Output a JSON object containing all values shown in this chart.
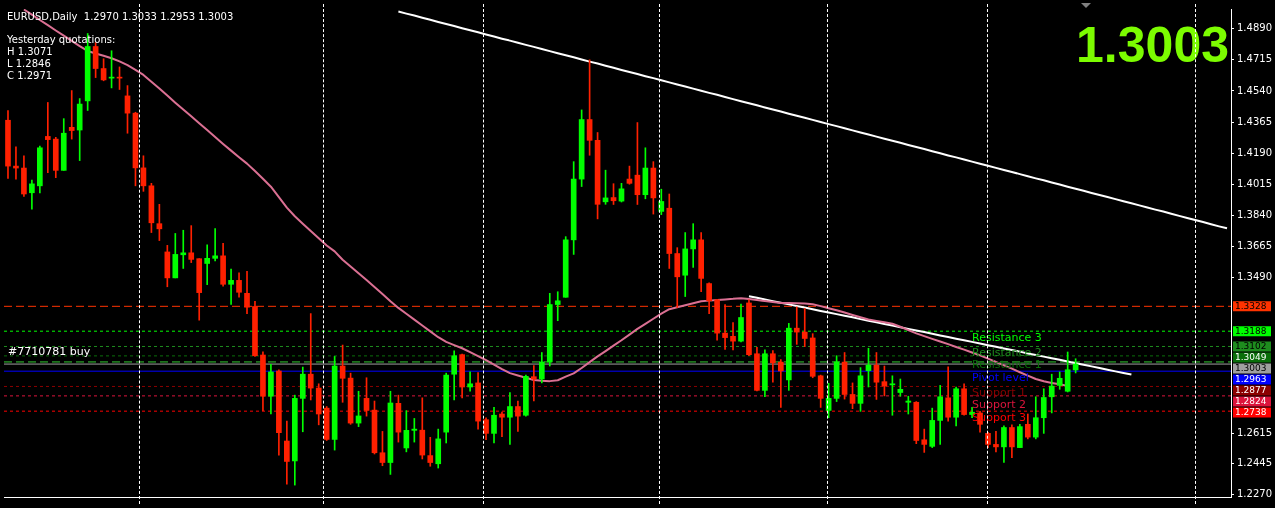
{
  "chart_data": {
    "type": "candlestick",
    "title": "EURUSD,Daily  1.2970 1.3033 1.2953 1.3003",
    "annotations": [
      "Yesterday quotations:",
      "H 1.3071",
      "L 1.2846",
      "C 1.2971",
      "1.3003",
      {
        "text": "#7710781 buy",
        "y": 1.3015
      },
      {
        "text": "Resistance 3",
        "y": 1.3188
      },
      {
        "text": "Resistance 2",
        "y": 1.3102
      },
      {
        "text": "Resistance 1",
        "y": 1.3049
      },
      {
        "text": "Pivot level",
        "y": 1.2963
      },
      {
        "text": "Support 1",
        "y": 1.2877
      },
      {
        "text": "Support 2",
        "y": 1.2824
      },
      {
        "text": "Support 3",
        "y": 1.2738
      }
    ],
    "categories": [
      null,
      null,
      null,
      null,
      null,
      null,
      null,
      null,
      null,
      null,
      null,
      null,
      null,
      null,
      null,
      null,
      null,
      null,
      null,
      null,
      null,
      null,
      null,
      null,
      null,
      null,
      null,
      null,
      null,
      null,
      null,
      null,
      null,
      null,
      null,
      null,
      null,
      null,
      null,
      null,
      null,
      null,
      null,
      null,
      null,
      null,
      null,
      null,
      null,
      null,
      null,
      null,
      null,
      null,
      null,
      null,
      null,
      null,
      null,
      null,
      null,
      null,
      null,
      null,
      null,
      null,
      null,
      null,
      null,
      null,
      null,
      null,
      null,
      null,
      null,
      null,
      null,
      null,
      null,
      null,
      null,
      null,
      null,
      null,
      null,
      null,
      null,
      null,
      null,
      null,
      null,
      null,
      null,
      null,
      null,
      null,
      null,
      null,
      null,
      null,
      null,
      null,
      null,
      null,
      null,
      null,
      null,
      null,
      null,
      null,
      null,
      null,
      null,
      null,
      null,
      null,
      null,
      null,
      null,
      null,
      null,
      null,
      null,
      null,
      null,
      null,
      null,
      null,
      null,
      null,
      null,
      null,
      null,
      null,
      null,
      null,
      null,
      null,
      null,
      null,
      null,
      null,
      null,
      null,
      null,
      null,
      null,
      null,
      null,
      null,
      null,
      null,
      null,
      null
    ],
    "ohlc": [
      [
        1.4375,
        1.443,
        1.4047,
        1.4117
      ],
      [
        1.4117,
        1.4226,
        1.4044,
        1.4106
      ],
      [
        1.4106,
        1.4175,
        1.3947,
        1.396
      ],
      [
        1.3967,
        1.4038,
        1.3875,
        1.4017
      ],
      [
        1.4006,
        1.4229,
        1.3966,
        1.422
      ],
      [
        1.4284,
        1.4475,
        1.408,
        1.4266
      ],
      [
        1.4269,
        1.4279,
        1.4052,
        1.4093
      ],
      [
        1.4093,
        1.4384,
        1.4093,
        1.4302
      ],
      [
        1.4335,
        1.4542,
        1.4269,
        1.4317
      ],
      [
        1.432,
        1.4497,
        1.4148,
        1.4466
      ],
      [
        1.4484,
        1.4863,
        1.443,
        1.479
      ],
      [
        1.479,
        1.4812,
        1.4615,
        1.4666
      ],
      [
        1.4666,
        1.4721,
        1.4597,
        1.4602
      ],
      [
        1.4612,
        1.4766,
        1.4557,
        1.4612
      ],
      [
        1.4612,
        1.4675,
        1.4548,
        1.4612
      ],
      [
        1.4512,
        1.457,
        1.4302,
        1.4415
      ],
      [
        1.4415,
        1.442,
        1.4006,
        1.4107
      ],
      [
        1.4107,
        1.4175,
        1.3975,
        1.4006
      ],
      [
        1.4006,
        1.402,
        1.3743,
        1.3798
      ],
      [
        1.3793,
        1.3902,
        1.3698,
        1.3764
      ],
      [
        1.3634,
        1.3671,
        1.3438,
        1.3488
      ],
      [
        1.3488,
        1.3738,
        1.3488,
        1.362
      ],
      [
        1.3618,
        1.3756,
        1.3541,
        1.3629
      ],
      [
        1.3629,
        1.3782,
        1.3574,
        1.3592
      ],
      [
        1.3596,
        1.3596,
        1.325,
        1.3405
      ],
      [
        1.3569,
        1.3674,
        1.345,
        1.3598
      ],
      [
        1.3598,
        1.3765,
        1.3583,
        1.3612
      ],
      [
        1.3612,
        1.3683,
        1.3441,
        1.3452
      ],
      [
        1.3452,
        1.3538,
        1.3338,
        1.3474
      ],
      [
        1.3474,
        1.3516,
        1.338,
        1.3407
      ],
      [
        1.3401,
        1.3525,
        1.3287,
        1.3323
      ],
      [
        1.3327,
        1.3356,
        1.3046,
        1.305
      ],
      [
        1.3054,
        1.3072,
        1.2741,
        1.2822
      ],
      [
        1.2822,
        1.3001,
        1.2722,
        1.2959
      ],
      [
        1.2964,
        1.297,
        1.2491,
        1.2617
      ],
      [
        1.257,
        1.2682,
        1.2327,
        1.2455
      ],
      [
        1.2458,
        1.2828,
        1.2322,
        1.281
      ],
      [
        1.281,
        1.2986,
        1.2622,
        1.2946
      ],
      [
        1.2946,
        1.3287,
        1.2801,
        1.2868
      ],
      [
        1.2868,
        1.2892,
        1.2661,
        1.2722
      ],
      [
        1.2755,
        1.2764,
        1.2573,
        1.2579
      ],
      [
        1.2579,
        1.3046,
        1.2519,
        1.2992
      ],
      [
        1.2992,
        1.311,
        1.2788,
        1.2923
      ],
      [
        1.2924,
        1.2952,
        1.2664,
        1.2671
      ],
      [
        1.2671,
        1.285,
        1.2651,
        1.2711
      ],
      [
        1.281,
        1.2926,
        1.271,
        1.2742
      ],
      [
        1.2744,
        1.2795,
        1.2497,
        1.2504
      ],
      [
        1.2504,
        1.2624,
        1.2431,
        1.2449
      ],
      [
        1.2449,
        1.285,
        1.2382,
        1.2784
      ],
      [
        1.2782,
        1.2828,
        1.2564,
        1.262
      ],
      [
        1.2531,
        1.2741,
        1.2509,
        1.263
      ],
      [
        1.263,
        1.2697,
        1.2564,
        1.2637
      ],
      [
        1.2631,
        1.2813,
        1.2469,
        1.2491
      ],
      [
        1.2488,
        1.2591,
        1.2428,
        1.2449
      ],
      [
        1.2442,
        1.2637,
        1.2418,
        1.2582
      ],
      [
        1.262,
        1.2952,
        1.2559,
        1.2941
      ],
      [
        1.2946,
        1.3077,
        1.2801,
        1.305
      ],
      [
        1.3056,
        1.3059,
        1.2813,
        1.2874
      ],
      [
        1.2874,
        1.2959,
        1.285,
        1.2892
      ],
      [
        1.2897,
        1.2955,
        1.2637,
        1.2682
      ],
      [
        1.269,
        1.2701,
        1.2577,
        1.2613
      ],
      [
        1.2613,
        1.2759,
        1.2559,
        1.2715
      ],
      [
        1.2722,
        1.2733,
        1.2595,
        1.2704
      ],
      [
        1.2704,
        1.2843,
        1.2551,
        1.2764
      ],
      [
        1.2764,
        1.2795,
        1.2624,
        1.271
      ],
      [
        1.2715,
        1.2941,
        1.271,
        1.2934
      ],
      [
        1.2932,
        1.2995,
        1.2795,
        1.2919
      ],
      [
        1.2919,
        1.3068,
        1.2897,
        1.3015
      ],
      [
        1.3015,
        1.3401,
        1.2992,
        1.3338
      ],
      [
        1.3338,
        1.341,
        1.3247,
        1.3359
      ],
      [
        1.3379,
        1.372,
        1.3379,
        1.3702
      ],
      [
        1.3702,
        1.4142,
        1.362,
        1.4044
      ],
      [
        1.4044,
        1.4433,
        1.4002,
        1.4379
      ],
      [
        1.4379,
        1.4715,
        1.4178,
        1.4262
      ],
      [
        1.4262,
        1.4306,
        1.382,
        1.3902
      ],
      [
        1.3916,
        1.4094,
        1.3902,
        1.3938
      ],
      [
        1.394,
        1.4018,
        1.3901,
        1.3922
      ],
      [
        1.392,
        1.402,
        1.3915,
        1.3989
      ],
      [
        1.4044,
        1.4117,
        1.4015,
        1.402
      ],
      [
        1.4066,
        1.4362,
        1.3901,
        1.3956
      ],
      [
        1.3956,
        1.422,
        1.3933,
        1.4106
      ],
      [
        1.4106,
        1.4142,
        1.3847,
        1.3938
      ],
      [
        1.3862,
        1.3987,
        1.3844,
        1.3918
      ],
      [
        1.388,
        1.396,
        1.3541,
        1.3625
      ],
      [
        1.3625,
        1.3658,
        1.3321,
        1.3494
      ],
      [
        1.3503,
        1.3743,
        1.3383,
        1.3651
      ],
      [
        1.3651,
        1.3793,
        1.3547,
        1.3702
      ],
      [
        1.3702,
        1.3743,
        1.341,
        1.3485
      ],
      [
        1.3456,
        1.346,
        1.3287,
        1.3359
      ],
      [
        1.3365,
        1.3368,
        1.3137,
        1.3177
      ],
      [
        1.3177,
        1.3338,
        1.3086,
        1.3152
      ],
      [
        1.3159,
        1.3237,
        1.3083,
        1.3132
      ],
      [
        1.3132,
        1.3341,
        1.3128,
        1.3265
      ],
      [
        1.3347,
        1.3365,
        1.305,
        1.3056
      ],
      [
        1.3061,
        1.3097,
        1.2852,
        1.2855
      ],
      [
        1.2855,
        1.3083,
        1.2819,
        1.3061
      ],
      [
        1.3061,
        1.3079,
        1.2901,
        1.301
      ],
      [
        1.3014,
        1.3028,
        1.2759,
        1.2964
      ],
      [
        1.2914,
        1.3232,
        1.2855,
        1.3205
      ],
      [
        1.3205,
        1.3325,
        1.3114,
        1.3183
      ],
      [
        1.3183,
        1.3316,
        1.3101,
        1.3147
      ],
      [
        1.315,
        1.3174,
        1.2926,
        1.2934
      ],
      [
        1.2937,
        1.2941,
        1.2759,
        1.281
      ],
      [
        1.2742,
        1.2895,
        1.2701,
        1.281
      ],
      [
        1.281,
        1.305,
        1.2792,
        1.3015
      ],
      [
        1.3014,
        1.3068,
        1.2806,
        1.2832
      ],
      [
        1.2832,
        1.2897,
        1.2752,
        1.2782
      ],
      [
        1.2782,
        1.2983,
        1.2737,
        1.2937
      ],
      [
        1.2966,
        1.3092,
        1.2874,
        1.2997
      ],
      [
        1.2997,
        1.3068,
        1.2804,
        1.2901
      ],
      [
        1.2904,
        1.2992,
        1.2824,
        1.2879
      ],
      [
        1.2886,
        1.2937,
        1.2715,
        1.2892
      ],
      [
        1.2843,
        1.2919,
        1.2822,
        1.2861
      ],
      [
        1.2788,
        1.2822,
        1.2722,
        1.2795
      ],
      [
        1.2788,
        1.2792,
        1.2555,
        1.2573
      ],
      [
        1.2577,
        1.2637,
        1.2506,
        1.2551
      ],
      [
        1.254,
        1.2755,
        1.2533,
        1.2686
      ],
      [
        1.2686,
        1.2883,
        1.2551,
        1.2819
      ],
      [
        1.2813,
        1.2988,
        1.2682,
        1.2704
      ],
      [
        1.2704,
        1.2874,
        1.2655,
        1.2864
      ],
      [
        1.2864,
        1.2892,
        1.2715,
        1.2719
      ],
      [
        1.2719,
        1.2759,
        1.2701,
        1.2732
      ],
      [
        1.2728,
        1.2737,
        1.262,
        1.2664
      ],
      [
        1.2613,
        1.2619,
        1.2533,
        1.2551
      ],
      [
        1.2551,
        1.2625,
        1.2509,
        1.2537
      ],
      [
        1.2537,
        1.2655,
        1.2449,
        1.2646
      ],
      [
        1.2646,
        1.2661,
        1.2477,
        1.2537
      ],
      [
        1.2533,
        1.2664,
        1.2533,
        1.2651
      ],
      [
        1.2664,
        1.2722,
        1.2582,
        1.2592
      ],
      [
        1.2592,
        1.2819,
        1.2582,
        1.2701
      ],
      [
        1.2701,
        1.2864,
        1.2613,
        1.2815
      ],
      [
        1.2819,
        1.2946,
        1.2728,
        1.2879
      ],
      [
        1.2883,
        1.2959,
        1.2861,
        1.2923
      ],
      [
        1.285,
        1.3071,
        1.2846,
        1.2971
      ],
      [
        1.297,
        1.3033,
        1.2953,
        1.3003
      ],
      null,
      null,
      null,
      null,
      null,
      null,
      null,
      null,
      null,
      null,
      null,
      null,
      null,
      null,
      null,
      null,
      null,
      null,
      null
    ],
    "colors": [
      "#ff2000",
      "#ff2000",
      "#ff2000",
      "#00ff00",
      "#00ff00",
      "#ff2000",
      "#ff2000",
      "#00ff00",
      "#ff2000",
      "#00ff00",
      "#00ff00",
      "#ff2000",
      "#ff2000",
      "#00ff00",
      "#ff2000",
      "#ff2000",
      "#ff2000",
      "#ff2000",
      "#ff2000",
      "#ff2000",
      "#ff2000",
      "#00ff00",
      "#00ff00",
      "#ff2000",
      "#ff2000",
      "#00ff00",
      "#00ff00",
      "#ff2000",
      "#00ff00",
      "#ff2000",
      "#ff2000",
      "#ff2000",
      "#ff2000",
      "#00ff00",
      "#ff2000",
      "#ff2000",
      "#00ff00",
      "#00ff00",
      "#ff2000",
      "#ff2000",
      "#ff2000",
      "#00ff00",
      "#ff2000",
      "#ff2000",
      "#00ff00",
      "#ff2000",
      "#ff2000",
      "#ff2000",
      "#00ff00",
      "#ff2000",
      "#00ff00",
      "#00ff00",
      "#ff2000",
      "#ff2000",
      "#00ff00",
      "#00ff00",
      "#00ff00",
      "#ff2000",
      "#00ff00",
      "#ff2000",
      "#ff2000",
      "#00ff00",
      "#ff2000",
      "#00ff00",
      "#ff2000",
      "#00ff00",
      "#ff2000",
      "#00ff00",
      "#00ff00",
      "#00ff00",
      "#00ff00",
      "#00ff00",
      "#00ff00",
      "#ff2000",
      "#ff2000",
      "#00ff00",
      "#ff2000",
      "#00ff00",
      "#ff2000",
      "#ff2000",
      "#00ff00",
      "#ff2000",
      "#00ff00",
      "#ff2000",
      "#ff2000",
      "#00ff00",
      "#00ff00",
      "#ff2000",
      "#ff2000",
      "#ff2000",
      "#ff2000",
      "#ff2000",
      "#00ff00",
      "#ff2000",
      "#ff2000",
      "#00ff00",
      "#ff2000",
      "#ff2000",
      "#00ff00",
      "#ff2000",
      "#ff2000",
      "#ff2000",
      "#ff2000",
      "#00ff00",
      "#00ff00",
      "#ff2000",
      "#ff2000",
      "#00ff00",
      "#00ff00",
      "#ff2000",
      "#ff2000",
      "#00ff00",
      "#00ff00",
      "#00ff00",
      "#ff2000",
      "#ff2000",
      "#00ff00",
      "#00ff00",
      "#ff2000",
      "#00ff00",
      "#ff2000",
      "#00ff00",
      "#ff2000",
      "#ff2000",
      "#ff2000",
      "#00ff00",
      "#ff2000",
      "#00ff00",
      "#ff2000",
      "#00ff00",
      "#00ff00",
      "#00ff00",
      "#00ff00",
      "#00ff00",
      "#00ff00",
      null,
      null,
      null,
      null,
      null,
      null,
      null,
      null,
      null,
      null,
      null,
      null,
      null,
      null,
      null,
      null,
      null,
      null,
      null
    ],
    "series": [
      {
        "type": "line",
        "color": "#db7093",
        "values": [
          null,
          null,
          1.4998,
          1.4969,
          1.4939,
          1.491,
          1.488,
          1.4851,
          1.4822,
          1.4792,
          1.4765,
          1.4751,
          1.4738,
          1.4724,
          1.4706,
          1.4685,
          1.4658,
          1.463,
          1.4592,
          1.4554,
          1.4514,
          1.4474,
          1.4435,
          1.4397,
          1.4358,
          1.432,
          1.4281,
          1.4242,
          1.4204,
          1.4167,
          1.4131,
          1.4089,
          1.4046,
          1.4001,
          1.3943,
          1.3883,
          1.3835,
          1.3793,
          1.3752,
          1.3711,
          1.367,
          1.3637,
          1.359,
          1.3552,
          1.3514,
          1.3476,
          1.3437,
          1.3397,
          1.3357,
          1.3319,
          1.3286,
          1.3253,
          1.322,
          1.3187,
          1.3154,
          1.3128,
          1.311,
          1.3092,
          1.307,
          1.3048,
          1.3025,
          1.3,
          1.2975,
          1.2952,
          1.2939,
          1.2926,
          1.2913,
          1.2909,
          1.2907,
          1.2912,
          1.2932,
          1.2951,
          1.2981,
          1.3014,
          1.3046,
          1.3076,
          1.3107,
          1.3137,
          1.3169,
          1.3201,
          1.3229,
          1.3258,
          1.3287,
          1.3312,
          1.3323,
          1.3334,
          1.3345,
          1.3356,
          1.336,
          1.3363,
          1.3367,
          1.337,
          1.3374,
          1.3369,
          1.3363,
          1.3358,
          1.3352,
          1.3347,
          1.3346,
          1.3345,
          1.3344,
          1.334,
          1.3329,
          1.3317,
          1.3306,
          1.3293,
          1.3279,
          1.3266,
          1.3254,
          1.3246,
          1.3238,
          1.323,
          1.3213,
          1.3194,
          1.3176,
          1.316,
          1.3145,
          1.313,
          1.3115,
          1.3099,
          1.3084,
          1.3068,
          1.3052,
          1.3034,
          1.3015,
          1.2996,
          1.2977,
          1.2957,
          1.2938,
          1.2919,
          1.2906,
          1.2897,
          1.2889,
          1.288,
          null,
          null,
          null,
          null,
          null,
          null,
          null,
          null,
          null,
          null,
          null,
          null,
          null,
          null,
          null,
          null,
          null,
          null,
          null,
          null
        ]
      },
      {
        "type": "line",
        "color": "#ffffff",
        "values": [
          null,
          null,
          null,
          null,
          null,
          null,
          null,
          null,
          null,
          null,
          null,
          null,
          null,
          null,
          null,
          null,
          null,
          null,
          null,
          null,
          null,
          null,
          null,
          null,
          null,
          null,
          null,
          null,
          null,
          null,
          null,
          null,
          null,
          null,
          null,
          null,
          null,
          null,
          null,
          null,
          null,
          null,
          null,
          null,
          null,
          null,
          null,
          null,
          null,
          1.4987,
          1.4975,
          1.4964,
          1.4952,
          1.494,
          1.4928,
          1.4917,
          1.4905,
          1.4893,
          1.4881,
          1.487,
          1.4858,
          1.4846,
          1.4834,
          1.4823,
          1.4811,
          1.4799,
          1.4788,
          1.4776,
          1.4764,
          1.4752,
          1.4741,
          1.4729,
          1.4717,
          1.4705,
          1.4694,
          1.4682,
          1.467,
          1.4658,
          1.4647,
          1.4635,
          1.4623,
          1.4612,
          1.46,
          1.4588,
          1.4576,
          1.4565,
          1.4553,
          1.4541,
          1.4529,
          1.4518,
          1.4506,
          1.4494,
          1.4482,
          1.4471,
          1.4459,
          1.4447,
          1.4436,
          1.4424,
          1.4412,
          1.44,
          1.4389,
          1.4377,
          1.4365,
          1.4353,
          1.4342,
          1.433,
          1.4318,
          1.4306,
          1.4295,
          1.4283,
          1.4271,
          1.426,
          1.4248,
          1.4236,
          1.4224,
          1.4213,
          1.4201,
          1.4189,
          1.4177,
          1.4166,
          1.4154,
          1.4142,
          1.413,
          1.4119,
          1.4107,
          1.4095,
          1.4084,
          1.4072,
          1.406,
          1.4048,
          1.4037,
          1.4025,
          1.4013,
          1.4001,
          1.399,
          1.3978,
          1.3966,
          1.3954,
          1.3943,
          1.3931,
          1.3919,
          1.3908,
          1.3896,
          1.3884,
          1.3872,
          1.3861,
          1.3849,
          1.3837,
          1.3825,
          1.3814,
          1.3802,
          1.379,
          1.3778,
          1.3767
        ]
      },
      {
        "type": "line",
        "color": "#ffffff",
        "values": [
          null,
          null,
          null,
          null,
          null,
          null,
          null,
          null,
          null,
          null,
          null,
          null,
          null,
          null,
          null,
          null,
          null,
          null,
          null,
          null,
          null,
          null,
          null,
          null,
          null,
          null,
          null,
          null,
          null,
          null,
          null,
          null,
          null,
          null,
          null,
          null,
          null,
          null,
          null,
          null,
          null,
          null,
          null,
          null,
          null,
          null,
          null,
          null,
          null,
          null,
          null,
          null,
          null,
          null,
          null,
          null,
          null,
          null,
          null,
          null,
          null,
          null,
          null,
          null,
          null,
          null,
          null,
          null,
          null,
          null,
          null,
          null,
          null,
          null,
          null,
          null,
          null,
          null,
          null,
          null,
          null,
          null,
          null,
          null,
          null,
          null,
          null,
          null,
          null,
          null,
          null,
          null,
          null,
          1.3385,
          1.3376,
          1.3367,
          1.3357,
          1.3348,
          1.3339,
          1.333,
          1.3321,
          1.3311,
          1.3302,
          1.3293,
          1.3284,
          1.3275,
          1.3266,
          1.3256,
          1.3247,
          1.3238,
          1.3229,
          1.322,
          1.321,
          1.3201,
          1.3192,
          1.3183,
          1.3174,
          1.3164,
          1.3155,
          1.3146,
          1.3137,
          1.3128,
          1.3119,
          1.3109,
          1.31,
          1.3091,
          1.3082,
          1.3073,
          1.3063,
          1.3054,
          1.3045,
          1.3036,
          1.3027,
          1.3017,
          1.3008,
          1.2999,
          1.299,
          1.2981,
          1.2971,
          1.2962,
          1.2953,
          1.2944,
          null,
          null,
          null,
          null,
          null,
          null,
          null,
          null,
          null,
          null,
          null,
          null
        ]
      }
    ],
    "marker": "none",
    "line_style": "solid",
    "ref_lines": [
      {
        "axis": "y",
        "value": 1.3328,
        "label": "1.3328",
        "color": "#ff3300",
        "line_style": "dashed"
      },
      {
        "axis": "y",
        "value": 1.3188,
        "label": "1.3188",
        "color": "#00ff00",
        "line_style": "dotted"
      },
      {
        "axis": "y",
        "value": 1.3102,
        "label": "1.3102",
        "color": "#1e8c1e",
        "line_style": "dotted"
      },
      {
        "axis": "y",
        "value": 1.3049,
        "label": "1.3049",
        "color": "#0a6e0a",
        "line_style": "dotted"
      },
      {
        "axis": "y",
        "value": 1.3015,
        "label": null,
        "color": "#32cd32",
        "line_style": "dashed"
      },
      {
        "axis": "y",
        "value": 1.3003,
        "label": "1.3003",
        "color": "#a0a0a0",
        "line_style": "solid"
      },
      {
        "axis": "y",
        "value": 1.2963,
        "label": "1.2963",
        "color": "#0000ff",
        "line_style": "solid"
      },
      {
        "axis": "y",
        "value": 1.2877,
        "label": "1.2877",
        "color": "#8b0000",
        "line_style": "dotted"
      },
      {
        "axis": "y",
        "value": 1.2824,
        "label": "1.2824",
        "color": "#dc143c",
        "line_style": "dotted"
      },
      {
        "axis": "y",
        "value": 1.2738,
        "label": "1.2738",
        "color": "#ff0000",
        "line_style": "dotted"
      }
    ],
    "ylim": [
      1.2255,
      1.5001
    ],
    "yticks": [
      {
        "value": 1.489,
        "label": "1.4890"
      },
      {
        "value": 1.4715,
        "label": "1.4715"
      },
      {
        "value": 1.454,
        "label": "1.4540"
      },
      {
        "value": 1.4365,
        "label": "1.4365"
      },
      {
        "value": 1.419,
        "label": "1.4190"
      },
      {
        "value": 1.4015,
        "label": "1.4015"
      },
      {
        "value": 1.384,
        "label": "1.3840"
      },
      {
        "value": 1.3665,
        "label": "1.3665"
      },
      {
        "value": 1.349,
        "label": "1.3490"
      },
      {
        "value": 1.2615,
        "label": "1.2615"
      },
      {
        "value": 1.2445,
        "label": "1.2445"
      },
      {
        "value": 1.227,
        "label": "1.2270"
      }
    ],
    "tick_labels": "y",
    "legend": false
  }
}
